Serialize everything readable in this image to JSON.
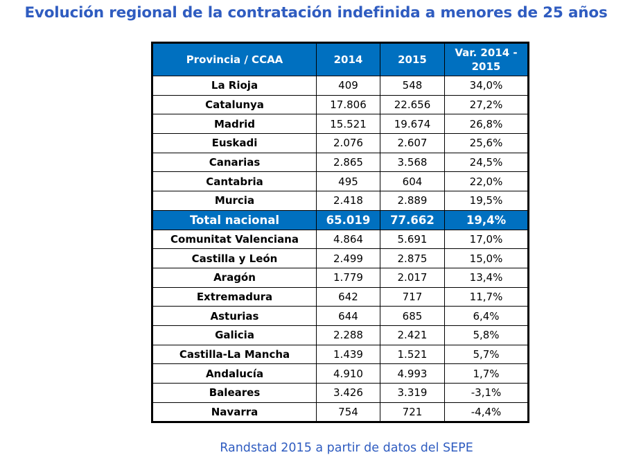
{
  "title": "Evolución regional de la contratación indefinida a menores de 25 años",
  "table": {
    "headers": [
      "Provincia / CCAA",
      "2014",
      "2015",
      "Var. 2014 - 2015"
    ],
    "rows": [
      {
        "name": "La Rioja",
        "y2014": "409",
        "y2015": "548",
        "var": "34,0%"
      },
      {
        "name": "Catalunya",
        "y2014": "17.806",
        "y2015": "22.656",
        "var": "27,2%"
      },
      {
        "name": "Madrid",
        "y2014": "15.521",
        "y2015": "19.674",
        "var": "26,8%"
      },
      {
        "name": "Euskadi",
        "y2014": "2.076",
        "y2015": "2.607",
        "var": "25,6%"
      },
      {
        "name": "Canarias",
        "y2014": "2.865",
        "y2015": "3.568",
        "var": "24,5%"
      },
      {
        "name": "Cantabria",
        "y2014": "495",
        "y2015": "604",
        "var": "22,0%"
      },
      {
        "name": "Murcia",
        "y2014": "2.418",
        "y2015": "2.889",
        "var": "19,5%"
      },
      {
        "name": "Total nacional",
        "y2014": "65.019",
        "y2015": "77.662",
        "var": "19,4%",
        "total": true
      },
      {
        "name": "Comunitat Valenciana",
        "y2014": "4.864",
        "y2015": "5.691",
        "var": "17,0%"
      },
      {
        "name": "Castilla y León",
        "y2014": "2.499",
        "y2015": "2.875",
        "var": "15,0%"
      },
      {
        "name": "Aragón",
        "y2014": "1.779",
        "y2015": "2.017",
        "var": "13,4%"
      },
      {
        "name": "Extremadura",
        "y2014": "642",
        "y2015": "717",
        "var": "11,7%"
      },
      {
        "name": "Asturias",
        "y2014": "644",
        "y2015": "685",
        "var": "6,4%"
      },
      {
        "name": "Galicia",
        "y2014": "2.288",
        "y2015": "2.421",
        "var": "5,8%"
      },
      {
        "name": "Castilla-La Mancha",
        "y2014": "1.439",
        "y2015": "1.521",
        "var": "5,7%"
      },
      {
        "name": "Andalucía",
        "y2014": "4.910",
        "y2015": "4.993",
        "var": "1,7%"
      },
      {
        "name": "Baleares",
        "y2014": "3.426",
        "y2015": "3.319",
        "var": "-3,1%"
      },
      {
        "name": "Navarra",
        "y2014": "754",
        "y2015": "721",
        "var": "-4,4%"
      }
    ]
  },
  "source": "Randstad 2015 a partir de datos del SEPE",
  "colors": {
    "header_bg": "#0070c0",
    "title": "#2f5cc0"
  }
}
